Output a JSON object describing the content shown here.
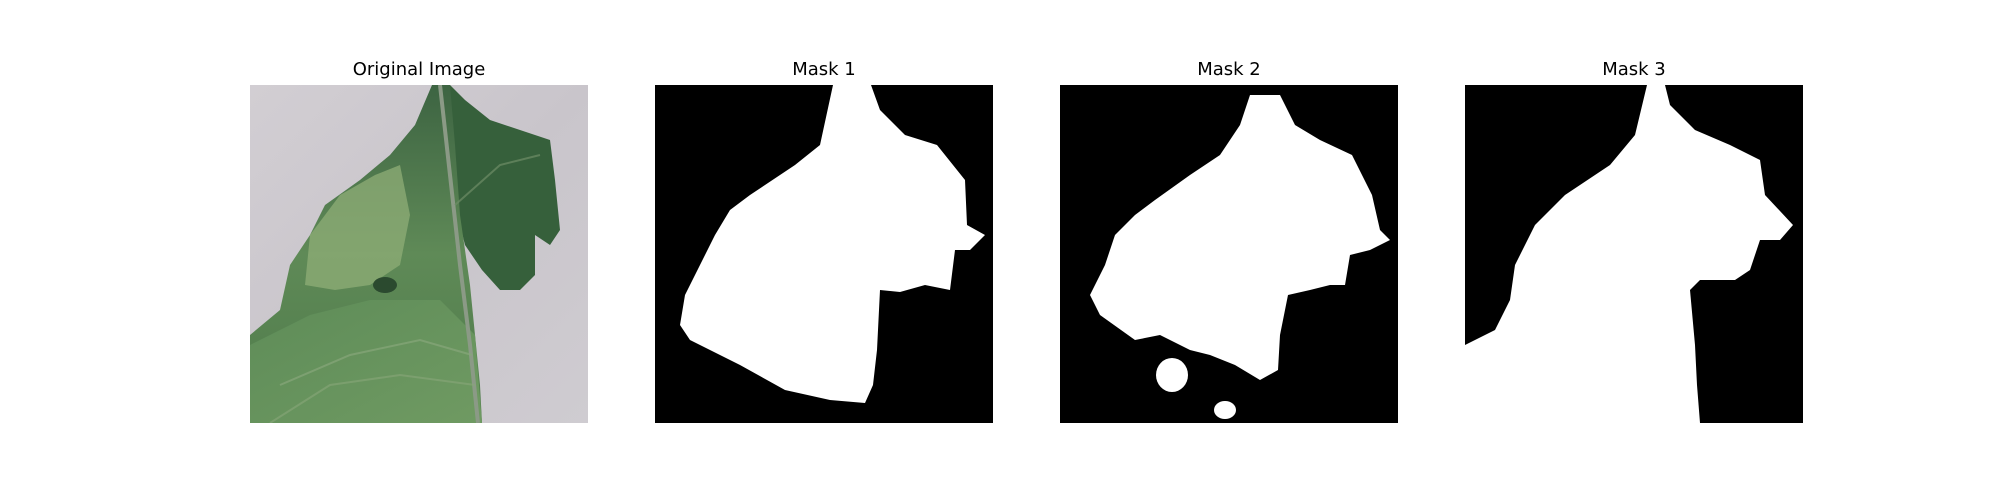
{
  "panels": [
    {
      "title": "Original Image"
    },
    {
      "title": "Mask 1"
    },
    {
      "title": "Mask 2"
    },
    {
      "title": "Mask 3"
    }
  ],
  "colors": {
    "background": "#ffffff",
    "mask_background": "#000000",
    "mask_foreground": "#ffffff",
    "leaf_dark": "#3f6a41",
    "leaf_light": "#7ea56e",
    "photo_background": "#cfcbcf"
  }
}
